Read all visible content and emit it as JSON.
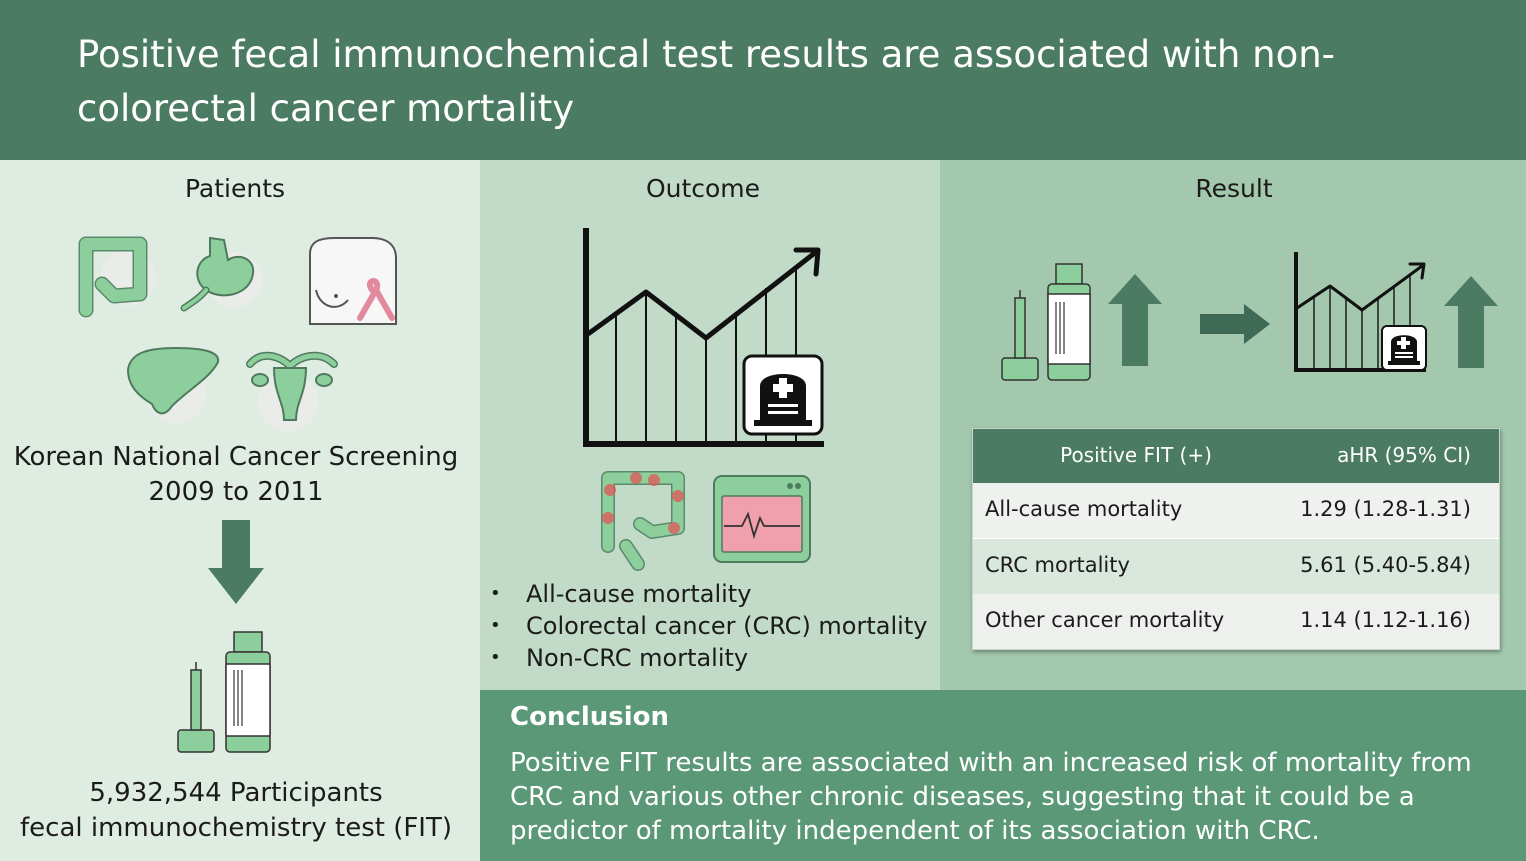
{
  "header": {
    "title": "Positive fecal immunochemical test results are associated with non-colorectal cancer mortality"
  },
  "patients": {
    "heading": "Patients",
    "screening_line1": "Korean National Cancer Screening",
    "screening_line2": "2009 to 2011",
    "participants_line1": "5,932,544 Participants",
    "participants_line2": "fecal immunochemistry test (FIT)"
  },
  "outcome": {
    "heading": "Outcome",
    "items": [
      "All-cause mortality",
      "Colorectal cancer (CRC) mortality",
      "Non-CRC mortality"
    ]
  },
  "result": {
    "heading": "Result",
    "table": {
      "headers": [
        "Positive FIT (+)",
        "aHR (95% CI)"
      ],
      "rows": [
        {
          "label": "All-cause mortality",
          "value": "1.29 (1.28-1.31)"
        },
        {
          "label": "CRC mortality",
          "value": "5.61 (5.40-5.84)"
        },
        {
          "label": "Other cancer mortality",
          "value": "1.14 (1.12-1.16)"
        }
      ]
    }
  },
  "conclusion": {
    "title": "Conclusion",
    "text": "Positive FIT results are associated with an increased risk of mortality from CRC and various other chronic diseases, suggesting that it could be a predictor of mortality independent of its association with CRC."
  },
  "icons": [
    "colon-icon",
    "stomach-icon",
    "breast-ribbon-icon",
    "liver-icon",
    "uterus-icon",
    "fit-kit-icon",
    "trend-chart-icon",
    "tombstone-icon",
    "inflamed-colon-icon",
    "ecg-monitor-icon",
    "up-arrow-icon",
    "right-arrow-icon",
    "down-arrow-icon"
  ],
  "colors": {
    "header": "#4b7c63",
    "patients_bg": "#dfece2",
    "outcome_bg": "#c2dbc8",
    "result_bg": "#a3c8ad",
    "conclusion_bg": "#5b9877",
    "organ_green": "#8ccf9c",
    "arrow_green": "#4b7c63"
  }
}
